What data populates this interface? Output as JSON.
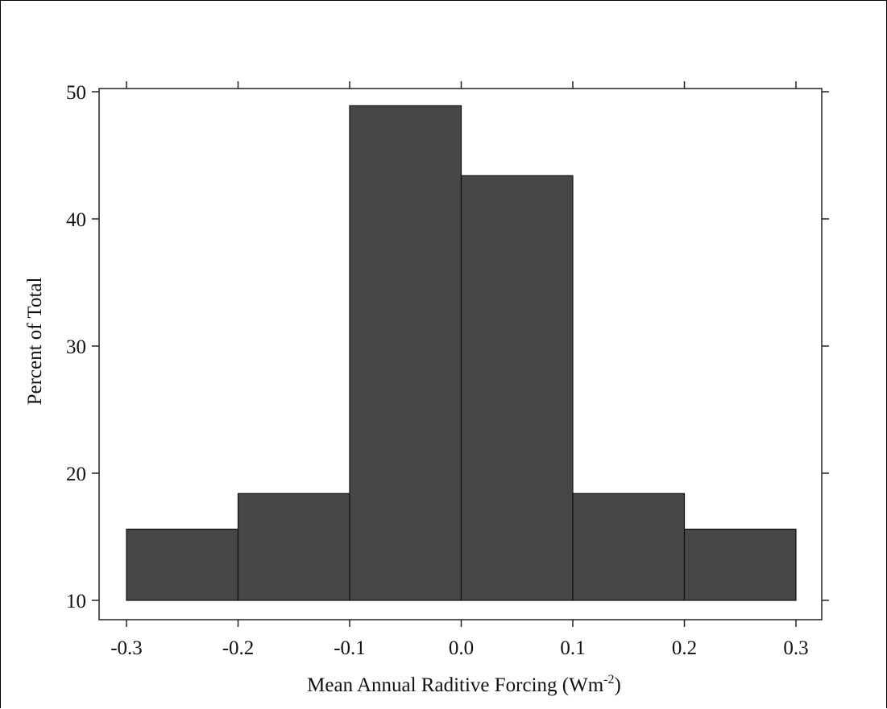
{
  "chart_data": {
    "type": "bar",
    "title": "",
    "xlabel": "Mean Annual Raditive Forcing (Wm",
    "xlabel_sup": "-2",
    "xlabel_end": ")",
    "ylabel": "Percent of Total",
    "bins": [
      {
        "from": -0.3,
        "to": -0.2,
        "value": 15.6
      },
      {
        "from": -0.2,
        "to": -0.1,
        "value": 18.4
      },
      {
        "from": -0.1,
        "to": 0.0,
        "value": 48.9
      },
      {
        "from": 0.0,
        "to": 0.1,
        "value": 43.4
      },
      {
        "from": 0.1,
        "to": 0.2,
        "value": 18.4
      },
      {
        "from": 0.2,
        "to": 0.3,
        "value": 15.6
      }
    ],
    "baseline": 10,
    "xlim": [
      -0.3,
      0.3
    ],
    "ylim": [
      10,
      50
    ],
    "x_ticks": [
      "-0.3",
      "-0.2",
      "-0.1",
      "0.0",
      "0.1",
      "0.2",
      "0.3"
    ],
    "y_ticks": [
      "10",
      "20",
      "30",
      "40",
      "50"
    ],
    "bar_color": "#474747",
    "grid": false,
    "legend": "none"
  }
}
